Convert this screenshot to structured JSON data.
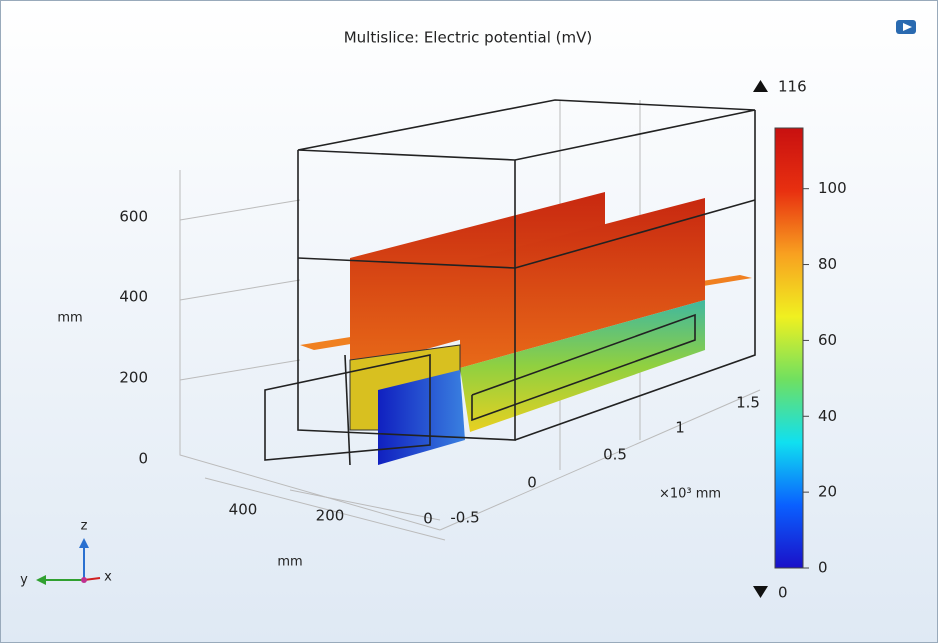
{
  "title": "Multislice: Electric potential (mV)",
  "colorbar": {
    "max": 116,
    "min": 0,
    "ticks": [
      0,
      20,
      40,
      60,
      80,
      100
    ],
    "colormap": [
      "#1a10c8",
      "#0a60ff",
      "#10e0f0",
      "#70e060",
      "#f0f020",
      "#f8a020",
      "#e83010",
      "#c81010"
    ]
  },
  "z_axis": {
    "label": "mm",
    "ticks": [
      0,
      200,
      400,
      600
    ]
  },
  "y_axis": {
    "label": "mm",
    "ticks": [
      400,
      200,
      0
    ]
  },
  "x_axis": {
    "label": "×10³ mm",
    "ticks": [
      -0.5,
      0,
      0.5,
      1,
      1.5
    ]
  },
  "triad": {
    "z": "z",
    "y": "y",
    "x": "x"
  }
}
